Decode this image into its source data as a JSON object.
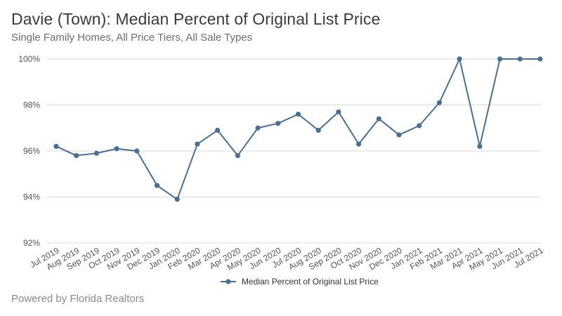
{
  "header": {
    "title": "Davie (Town): Median Percent of Original List Price",
    "subtitle": "Single Family Homes, All Price Tiers, All Sale Types"
  },
  "footer": {
    "text": "Powered by Florida Realtors"
  },
  "colors": {
    "series": "#4a6f93",
    "grid": "#d9d9d9"
  },
  "chart_data": {
    "type": "line",
    "title": "Davie (Town): Median Percent of Original List Price",
    "subtitle": "Single Family Homes, All Price Tiers, All Sale Types",
    "xlabel": "",
    "ylabel": "",
    "ylim": [
      92,
      100
    ],
    "yticks": [
      92,
      94,
      96,
      98,
      100
    ],
    "ytick_labels": [
      "92%",
      "94%",
      "96%",
      "98%",
      "100%"
    ],
    "grid": true,
    "legend_position": "bottom",
    "categories": [
      "Jul 2019",
      "Aug 2019",
      "Sep 2019",
      "Oct 2019",
      "Nov 2019",
      "Dec 2019",
      "Jan 2020",
      "Feb 2020",
      "Mar 2020",
      "Apr 2020",
      "May 2020",
      "Jun 2020",
      "Jul 2020",
      "Aug 2020",
      "Sep 2020",
      "Oct 2020",
      "Nov 2020",
      "Dec 2020",
      "Jan 2021",
      "Feb 2021",
      "Mar 2021",
      "Apr 2021",
      "May 2021",
      "Jun 2021",
      "Jul 2021"
    ],
    "series": [
      {
        "name": "Median Percent of Original List Price",
        "values": [
          96.2,
          95.8,
          95.9,
          96.1,
          96.0,
          94.5,
          93.9,
          96.3,
          96.9,
          95.8,
          97.0,
          97.2,
          97.6,
          96.9,
          97.7,
          96.3,
          97.4,
          96.7,
          97.1,
          98.1,
          100.0,
          96.2,
          100.0,
          100.0,
          100.0
        ]
      }
    ]
  }
}
